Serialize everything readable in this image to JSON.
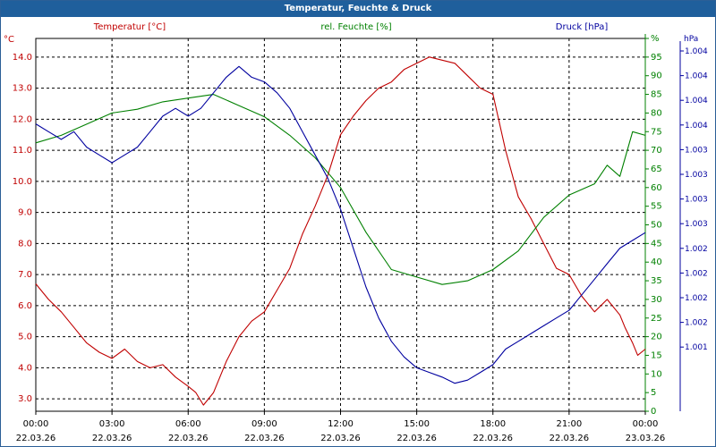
{
  "window": {
    "title": "Temperatur, Feuchte & Druck"
  },
  "colors": {
    "temperature": "#c00000",
    "humidity": "#008000",
    "pressure": "#00009f",
    "grid": "#000000",
    "title_bg": "#1f5f9c"
  },
  "chart_data": {
    "type": "line",
    "title": "Temperatur, Feuchte & Druck",
    "x_hours": [
      0,
      3,
      6,
      9,
      12,
      15,
      18,
      21,
      24
    ],
    "x_time_labels": [
      "00:00",
      "03:00",
      "06:00",
      "09:00",
      "12:00",
      "15:00",
      "18:00",
      "21:00",
      "00:00"
    ],
    "x_date_labels": [
      "22.03.26",
      "22.03.26",
      "22.03.26",
      "22.03.26",
      "22.03.26",
      "22.03.26",
      "22.03.26",
      "22.03.26",
      "23.03.26"
    ],
    "axes": {
      "left": {
        "unit": "°C",
        "series_label": "Temperatur [°C]",
        "min": 2.6,
        "max": 14.6,
        "ticks": [
          3.0,
          4.0,
          5.0,
          6.0,
          7.0,
          8.0,
          9.0,
          10.0,
          11.0,
          12.0,
          13.0,
          14.0
        ],
        "tick_labels": [
          "3.0",
          "4.0",
          "5.0",
          "6.0",
          "7.0",
          "8.0",
          "9.0",
          "10.0",
          "11.0",
          "12.0",
          "13.0",
          "14.0"
        ]
      },
      "humidity": {
        "unit": "%",
        "series_label": "rel. Feuchte [%]",
        "min": 0,
        "max": 100,
        "ticks": [
          0,
          5,
          10,
          15,
          20,
          25,
          30,
          35,
          40,
          45,
          50,
          55,
          60,
          65,
          70,
          75,
          80,
          85,
          90,
          95,
          100
        ],
        "tick_labels": [
          "0",
          "5",
          "10",
          "15",
          "20",
          "25",
          "30",
          "35",
          "40",
          "45",
          "50",
          "55",
          "60",
          "65",
          "70",
          "75",
          "80",
          "85",
          "90",
          "95",
          "%"
        ]
      },
      "pressure": {
        "unit": "hPa",
        "series_label": "Druck [hPa]",
        "tick_labels": [
          "1.004",
          "1.004",
          "1.004",
          "1.004",
          "1.003",
          "1.003",
          "1.003",
          "1.003",
          "1.002",
          "1.002",
          "1.002",
          "1.002",
          "1.001"
        ]
      }
    },
    "series": [
      {
        "name": "Temperatur [°C]",
        "axis": "left",
        "color": "#c00000",
        "x": [
          0,
          0.5,
          1,
          1.5,
          2,
          2.5,
          3,
          3.5,
          4,
          4.5,
          5,
          5.5,
          6,
          6.3,
          6.6,
          7,
          7.5,
          8,
          8.5,
          9,
          9.5,
          10,
          10.5,
          11,
          11.5,
          12,
          12.5,
          13,
          13.5,
          14,
          14.5,
          15,
          15.5,
          16,
          16.5,
          17,
          17.5,
          18,
          18.5,
          19,
          19.5,
          20,
          20.5,
          21,
          21.5,
          22,
          22.5,
          23,
          23.2,
          23.5,
          23.7,
          24
        ],
        "values": [
          6.7,
          6.2,
          5.8,
          5.3,
          4.8,
          4.5,
          4.3,
          4.6,
          4.2,
          4.0,
          4.1,
          3.7,
          3.4,
          3.2,
          2.8,
          3.2,
          4.2,
          5.0,
          5.5,
          5.8,
          6.5,
          7.2,
          8.3,
          9.2,
          10.2,
          11.5,
          12.1,
          12.6,
          13.0,
          13.2,
          13.6,
          13.8,
          14.0,
          13.9,
          13.8,
          13.4,
          13.0,
          12.8,
          11.0,
          9.5,
          8.8,
          8.0,
          7.2,
          7.0,
          6.3,
          5.8,
          6.2,
          5.7,
          5.3,
          4.8,
          4.4,
          4.6
        ]
      },
      {
        "name": "rel. Feuchte [%]",
        "axis": "humidity",
        "color": "#008000",
        "x": [
          0,
          1,
          2,
          3,
          4,
          5,
          6,
          7,
          8,
          9,
          10,
          11,
          12,
          13,
          14,
          15,
          16,
          17,
          18,
          19,
          20,
          21,
          22,
          22.5,
          23,
          23.5,
          24
        ],
        "values": [
          72,
          74,
          77,
          80,
          81,
          83,
          84,
          85,
          82,
          79,
          74,
          68,
          60,
          48,
          38,
          36,
          34,
          35,
          38,
          43,
          52,
          58,
          61,
          66,
          63,
          75,
          74
        ]
      },
      {
        "name": "Druck [hPa]",
        "axis": "pressure",
        "color": "#00009f",
        "x": [
          0,
          0.5,
          1,
          1.5,
          2,
          2.5,
          3,
          3.5,
          4,
          4.5,
          5,
          5.5,
          6,
          6.5,
          7,
          7.5,
          8,
          8.5,
          9,
          9.5,
          10,
          10.5,
          11,
          11.5,
          12,
          12.5,
          13,
          13.5,
          14,
          14.5,
          15,
          15.5,
          16,
          16.5,
          17,
          17.5,
          18,
          18.5,
          19,
          19.5,
          20,
          20.5,
          21,
          21.5,
          22,
          22.5,
          23,
          23.5,
          24
        ],
        "values": [
          1003.35,
          1003.3,
          1003.25,
          1003.3,
          1003.2,
          1003.15,
          1003.1,
          1003.15,
          1003.2,
          1003.3,
          1003.4,
          1003.45,
          1003.4,
          1003.45,
          1003.55,
          1003.65,
          1003.72,
          1003.65,
          1003.62,
          1003.55,
          1003.45,
          1003.3,
          1003.15,
          1003.0,
          1002.8,
          1002.55,
          1002.3,
          1002.1,
          1001.95,
          1001.85,
          1001.78,
          1001.75,
          1001.72,
          1001.68,
          1001.7,
          1001.75,
          1001.8,
          1001.9,
          1001.95,
          1002.0,
          1002.05,
          1002.1,
          1002.15,
          1002.25,
          1002.35,
          1002.45,
          1002.55,
          1002.6,
          1002.65
        ]
      }
    ]
  }
}
